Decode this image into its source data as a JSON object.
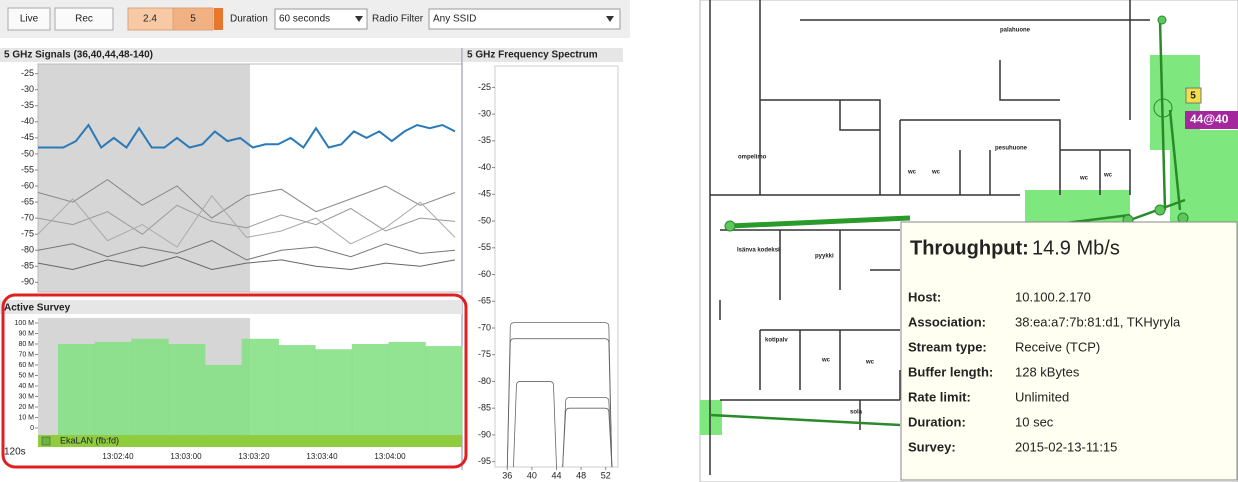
{
  "toolbar": {
    "live": "Live",
    "rec": "Rec",
    "band_24": "2.4",
    "band_5": "5",
    "duration_label": "Duration",
    "duration_value": "60 seconds",
    "filter_label": "Radio Filter",
    "filter_value": "Any SSID"
  },
  "signals_chart": {
    "type": "line",
    "title": "5 GHz Signals (36,40,44,48-140)",
    "ylim": [
      -93,
      -22
    ],
    "yticks": [
      -25,
      -30,
      -35,
      -40,
      -45,
      -50,
      -55,
      -60,
      -65,
      -70,
      -75,
      -80,
      -85,
      -90
    ],
    "series": [
      {
        "color": "#2a7ab8",
        "values": [
          -48,
          -48,
          -48,
          -46,
          -41,
          -48,
          -45,
          -48,
          -42,
          -48,
          -48,
          -45,
          -48,
          -47,
          -43,
          -46,
          -45,
          -48,
          -47,
          -47,
          -45,
          -48,
          -42,
          -48,
          -47,
          -43,
          -45,
          -43,
          -46,
          -43,
          -41,
          -42,
          -41,
          -43
        ]
      },
      {
        "color": "#888888",
        "values": [
          -62,
          -65,
          -58,
          -66,
          -60,
          -70,
          -63,
          -61,
          -68,
          -64,
          -60,
          -66,
          -62
        ]
      },
      {
        "color": "#999999",
        "values": [
          -70,
          -72,
          -68,
          -75,
          -66,
          -71,
          -73,
          -69,
          -72,
          -67,
          -74,
          -70,
          -71
        ]
      },
      {
        "color": "#777777",
        "values": [
          -80,
          -78,
          -82,
          -79,
          -81,
          -77,
          -83,
          -80,
          -79,
          -82,
          -78,
          -81,
          -80
        ]
      },
      {
        "color": "#aaaaaa",
        "values": [
          -75,
          -64,
          -77,
          -72,
          -79,
          -63,
          -76,
          -74,
          -70,
          -78,
          -73,
          -65,
          -76
        ]
      },
      {
        "color": "#666666",
        "values": [
          -84,
          -86,
          -83,
          -85,
          -82,
          -86,
          -84,
          -83,
          -85,
          -86,
          -84,
          -85,
          -83
        ]
      }
    ]
  },
  "spectrum_chart": {
    "type": "spectrum",
    "title": "5 GHz Frequency Spectrum",
    "xlim": [
      34,
      54
    ],
    "xticks": [
      36,
      40,
      44,
      48,
      52
    ],
    "ylim": [
      -96,
      -21
    ],
    "yticks": [
      -25,
      -30,
      -35,
      -40,
      -45,
      -50,
      -55,
      -60,
      -65,
      -70,
      -75,
      -80,
      -85,
      -90,
      -95
    ],
    "shapes": [
      {
        "channels": [
          36,
          53
        ],
        "level": -69
      },
      {
        "channels": [
          36,
          53
        ],
        "level": -72
      },
      {
        "channels": [
          37,
          44
        ],
        "level": -80
      },
      {
        "channels": [
          45,
          53
        ],
        "level": -83
      },
      {
        "channels": [
          45,
          53
        ],
        "level": -85
      }
    ]
  },
  "survey_chart": {
    "type": "area",
    "title": "Active Survey",
    "ylim": [
      0,
      100
    ],
    "yticks": [
      {
        "value": 0,
        "label": "0"
      },
      {
        "value": 10,
        "label": "10 M"
      },
      {
        "value": 20,
        "label": "20 M"
      },
      {
        "value": 30,
        "label": "30 M"
      },
      {
        "value": 40,
        "label": "40 M"
      },
      {
        "value": 50,
        "label": "50 M"
      },
      {
        "value": 60,
        "label": "60 M"
      },
      {
        "value": 70,
        "label": "70 M"
      },
      {
        "value": 80,
        "label": "80 M"
      },
      {
        "value": 90,
        "label": "90 M"
      },
      {
        "value": 100,
        "label": "100 M"
      }
    ],
    "values": [
      80,
      82,
      85,
      80,
      60,
      85,
      79,
      75,
      80,
      82,
      78
    ],
    "xtick_labels": [
      "13:02:40",
      "13:03:00",
      "13:03:20",
      "13:03:40",
      "13:04:00"
    ],
    "legend": "EkaLAN (fb:fd)",
    "window": "120s"
  },
  "floor_plan": {
    "rooms": [
      "palahuone",
      "ompelimo",
      "pesuhuone",
      "wc",
      "wc",
      "wc",
      "wc",
      "pyykki",
      "kotipalv",
      "wc",
      "wc",
      "sola",
      "Isänva kodeksi"
    ],
    "badge_5": "5",
    "badge_ap": "44@40"
  },
  "tooltip": {
    "title": "Throughput:",
    "value": "14.9 Mb/s",
    "rows": [
      [
        "Host:",
        "10.100.2.170"
      ],
      [
        "Association:",
        "38:ea:a7:7b:81:d1, TKHyryla"
      ],
      [
        "Stream type:",
        "Receive (TCP)"
      ],
      [
        "Buffer length:",
        "128 kBytes"
      ],
      [
        "Rate limit:",
        "Unlimited"
      ],
      [
        "Duration:",
        "10 sec"
      ],
      [
        "Survey:",
        "2015-02-13-11:15"
      ]
    ]
  }
}
